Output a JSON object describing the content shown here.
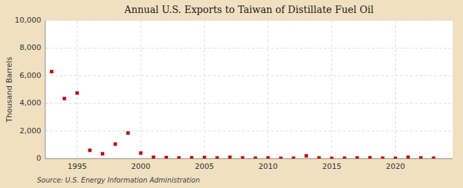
{
  "chart_data": {
    "type": "scatter",
    "title": "Annual U.S. Exports to Taiwan of Distillate Fuel Oil",
    "ylabel": "Thousand Barrels",
    "source": "Source: U.S. Energy Information Administration",
    "x": [
      1993,
      1994,
      1995,
      1996,
      1997,
      1998,
      1999,
      2000,
      2001,
      2002,
      2003,
      2004,
      2005,
      2006,
      2007,
      2008,
      2009,
      2010,
      2011,
      2012,
      2013,
      2014,
      2015,
      2016,
      2017,
      2018,
      2019,
      2020,
      2021,
      2022,
      2023
    ],
    "values": [
      6300,
      4350,
      4750,
      600,
      350,
      1050,
      1850,
      400,
      100,
      75,
      50,
      60,
      80,
      50,
      100,
      50,
      30,
      50,
      20,
      30,
      200,
      50,
      20,
      30,
      50,
      60,
      30,
      20,
      100,
      50,
      30
    ],
    "color": "#cc0000",
    "marker": "square",
    "xlim": [
      1992.5,
      2024.5
    ],
    "xticks": [
      1995,
      2000,
      2005,
      2010,
      2015,
      2020
    ],
    "ylim": [
      0,
      10000
    ],
    "yticks": [
      0,
      {
        "value": 2000,
        "label": "2,000"
      },
      {
        "value": 4000,
        "label": "4,000"
      },
      {
        "value": 6000,
        "label": "6,000"
      },
      {
        "value": 8000,
        "label": "8,000"
      },
      {
        "value": 10000,
        "label": "10,000"
      }
    ],
    "grid": true
  }
}
